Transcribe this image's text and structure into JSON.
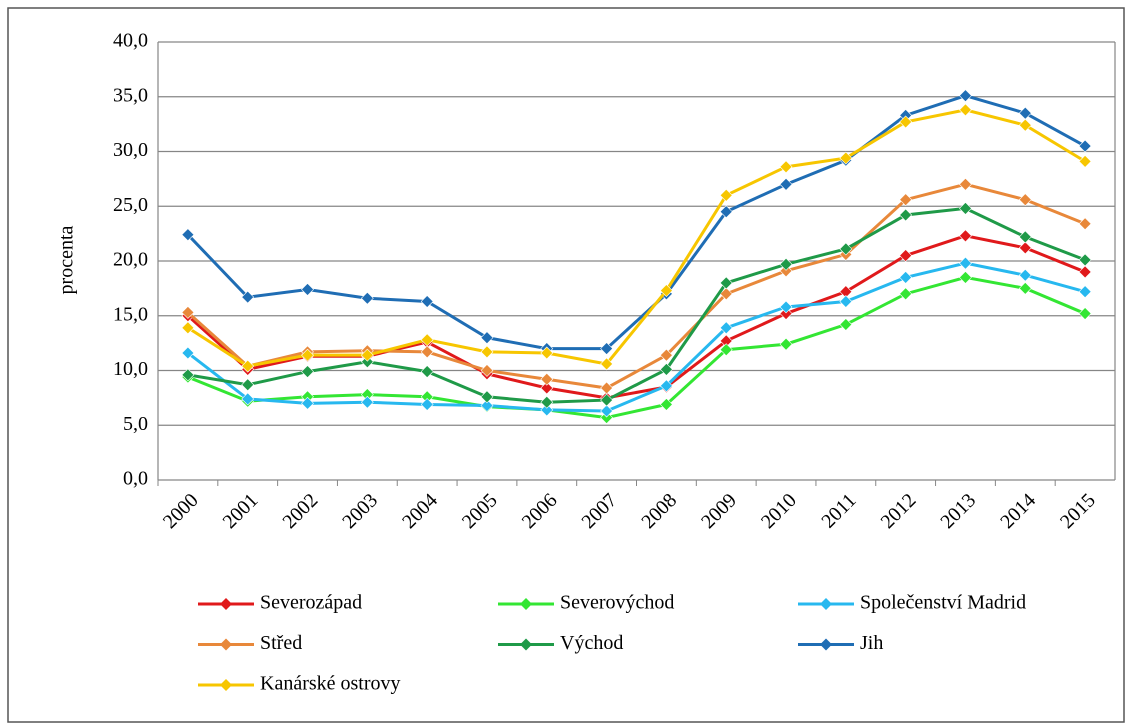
{
  "chart_data": {
    "type": "line",
    "y_label": "procenta",
    "categories": [
      "2000",
      "2001",
      "2002",
      "2003",
      "2004",
      "2005",
      "2006",
      "2007",
      "2008",
      "2009",
      "2010",
      "2011",
      "2012",
      "2013",
      "2014",
      "2015"
    ],
    "ylim": [
      0,
      40
    ],
    "yticks": [
      {
        "value": 0,
        "label": "0,0"
      },
      {
        "value": 5,
        "label": "5,0"
      },
      {
        "value": 10,
        "label": "10,0"
      },
      {
        "value": 15,
        "label": "15,0"
      },
      {
        "value": 20,
        "label": "20,0"
      },
      {
        "value": 25,
        "label": "25,0"
      },
      {
        "value": 30,
        "label": "30,0"
      },
      {
        "value": 35,
        "label": "35,0"
      },
      {
        "value": 40,
        "label": "40,0"
      }
    ],
    "grid": true,
    "legend": "bottom",
    "series": [
      {
        "name": "Severozápad",
        "color": "#e0191b",
        "values": [
          15.0,
          10.1,
          11.3,
          11.3,
          12.6,
          9.7,
          8.4,
          7.5,
          8.5,
          12.7,
          15.2,
          17.2,
          20.5,
          22.3,
          21.2,
          19.0
        ]
      },
      {
        "name": "Severovýchod",
        "color": "#33e633",
        "values": [
          9.4,
          7.2,
          7.6,
          7.8,
          7.6,
          6.7,
          6.4,
          5.7,
          6.9,
          11.9,
          12.4,
          14.2,
          17.0,
          18.5,
          17.5,
          15.2
        ]
      },
      {
        "name": "Společenství Madrid",
        "color": "#27b8ef",
        "values": [
          11.6,
          7.4,
          7.0,
          7.1,
          6.9,
          6.8,
          6.4,
          6.3,
          8.6,
          13.9,
          15.8,
          16.3,
          18.5,
          19.8,
          18.7,
          17.2
        ]
      },
      {
        "name": "Střed",
        "color": "#e8883a",
        "values": [
          15.3,
          10.4,
          11.7,
          11.8,
          11.7,
          10.0,
          9.2,
          8.4,
          11.4,
          17.0,
          19.1,
          20.6,
          25.6,
          27.0,
          25.6,
          23.4
        ]
      },
      {
        "name": "Východ",
        "color": "#1f9a48",
        "values": [
          9.6,
          8.7,
          9.9,
          10.8,
          9.9,
          7.6,
          7.1,
          7.3,
          10.1,
          18.0,
          19.7,
          21.1,
          24.2,
          24.8,
          22.2,
          20.1
        ]
      },
      {
        "name": "Jih",
        "color": "#1f6db4",
        "values": [
          22.4,
          16.7,
          17.4,
          16.6,
          16.3,
          13.0,
          12.0,
          12.0,
          17.0,
          24.5,
          27.0,
          29.2,
          33.3,
          35.1,
          33.5,
          30.5
        ]
      },
      {
        "name": "Kanárské ostrovy",
        "color": "#f7c600",
        "values": [
          13.9,
          10.4,
          11.4,
          11.4,
          12.8,
          11.7,
          11.6,
          10.6,
          17.3,
          26.0,
          28.6,
          29.4,
          32.7,
          33.8,
          32.4,
          29.1
        ]
      }
    ]
  }
}
